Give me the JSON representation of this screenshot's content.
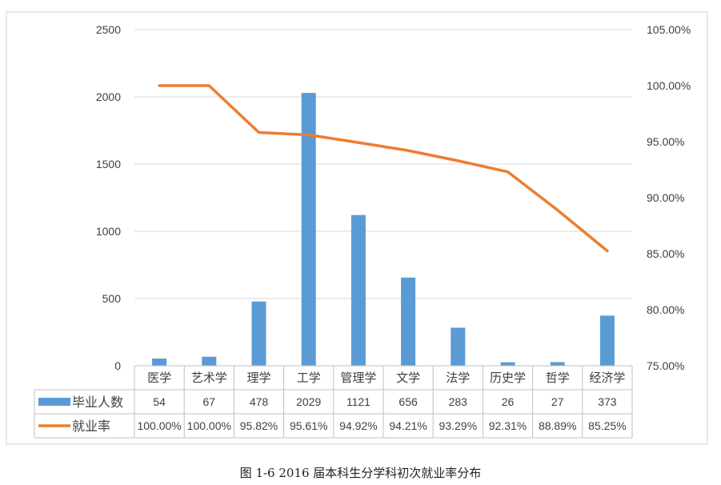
{
  "caption": "图 1-6 2016 届本科生分学科初次就业率分布",
  "chart_data": {
    "type": "bar",
    "categories": [
      "医学",
      "艺术学",
      "理学",
      "工学",
      "管理学",
      "文学",
      "法学",
      "历史学",
      "哲学",
      "经济学"
    ],
    "series": [
      {
        "name": "毕业人数",
        "type": "bar",
        "axis": "left",
        "color": "#5B9BD5",
        "values": [
          54,
          67,
          478,
          2029,
          1121,
          656,
          283,
          26,
          27,
          373
        ],
        "labels": [
          "54",
          "67",
          "478",
          "2029",
          "1121",
          "656",
          "283",
          "26",
          "27",
          "373"
        ]
      },
      {
        "name": "就业率",
        "type": "line",
        "axis": "right",
        "color": "#ED7D31",
        "values": [
          100.0,
          100.0,
          95.82,
          95.61,
          94.92,
          94.21,
          93.29,
          92.31,
          88.89,
          85.25
        ],
        "labels": [
          "100.00%",
          "100.00%",
          "95.82%",
          "95.61%",
          "94.92%",
          "94.21%",
          "93.29%",
          "92.31%",
          "88.89%",
          "85.25%"
        ]
      }
    ],
    "left_axis": {
      "range": [
        0,
        2500
      ],
      "ticks": [
        0,
        500,
        1000,
        1500,
        2000,
        2500
      ],
      "tick_labels": [
        "0",
        "500",
        "1000",
        "1500",
        "2000",
        "2500"
      ]
    },
    "right_axis": {
      "range": [
        75,
        105
      ],
      "ticks": [
        75,
        80,
        85,
        90,
        95,
        100,
        105
      ],
      "tick_labels": [
        "75.00%",
        "80.00%",
        "85.00%",
        "90.00%",
        "95.00%",
        "100.00%",
        "105.00%"
      ]
    },
    "grid": true,
    "legend": "data-table-bottom",
    "title": "",
    "xlabel": "",
    "ylabel": ""
  }
}
